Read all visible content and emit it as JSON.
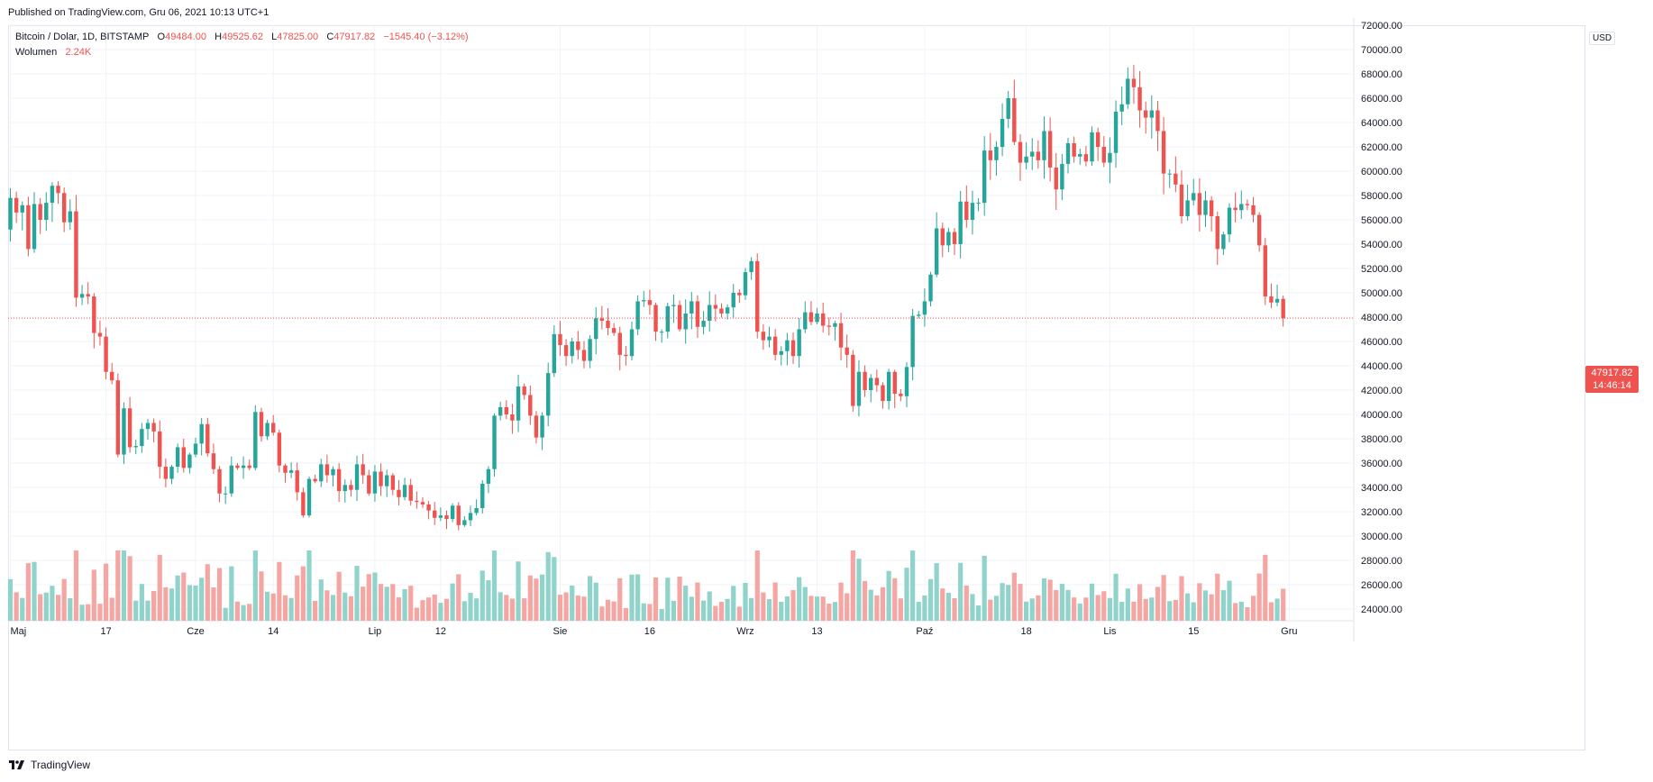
{
  "header": {
    "published": "Published on TradingView.com, Gru 06, 2021 10:13 UTC+1"
  },
  "legend": {
    "symbol": "Bitcoin / Dolar, 1D, BITSTAMP",
    "o_label": "O",
    "o_value": "49484.00",
    "h_label": "H",
    "h_value": "49525.62",
    "l_label": "L",
    "l_value": "47825.00",
    "c_label": "C",
    "c_value": "47917.82",
    "change": "−1545.40 (−3.12%)",
    "volume_label": "Wolumen",
    "volume_value": "2.24K"
  },
  "axis": {
    "currency": "USD"
  },
  "price_tag": {
    "price": "47917.82",
    "countdown": "14:46:14"
  },
  "brand": {
    "name": "TradingView"
  },
  "colors": {
    "up": "#26a69a",
    "down": "#ef5350",
    "up_vol": "#8fd3cb",
    "down_vol": "#f5a5a2",
    "grid": "#f0f3fa"
  },
  "chart_data": {
    "type": "candlestick",
    "title": "Bitcoin / Dolar, 1D, BITSTAMP",
    "ylabel": "USD",
    "ylim": [
      23000,
      72000
    ],
    "y_ticks": [
      24000,
      26000,
      28000,
      30000,
      32000,
      34000,
      36000,
      38000,
      40000,
      42000,
      44000,
      46000,
      48000,
      50000,
      52000,
      54000,
      56000,
      58000,
      60000,
      62000,
      64000,
      66000,
      68000,
      70000,
      72000
    ],
    "y_tick_labels": [
      "24000.00",
      "26000.00",
      "28000.00",
      "30000.00",
      "32000.00",
      "34000.00",
      "36000.00",
      "38000.00",
      "40000.00",
      "42000.00",
      "44000.00",
      "46000.00",
      "48000.00",
      "50000.00",
      "52000.00",
      "54000.00",
      "56000.00",
      "58000.00",
      "60000.00",
      "62000.00",
      "64000.00",
      "66000.00",
      "68000.00",
      "70000.00",
      "72000.00"
    ],
    "x_ticks": [
      {
        "label": "Maj",
        "index": 0
      },
      {
        "label": "17",
        "index": 16
      },
      {
        "label": "Cze",
        "index": 31
      },
      {
        "label": "14",
        "index": 44
      },
      {
        "label": "Lip",
        "index": 61
      },
      {
        "label": "12",
        "index": 72
      },
      {
        "label": "Sie",
        "index": 92
      },
      {
        "label": "16",
        "index": 107
      },
      {
        "label": "Wrz",
        "index": 123
      },
      {
        "label": "13",
        "index": 135
      },
      {
        "label": "Paź",
        "index": 153
      },
      {
        "label": "18",
        "index": 170
      },
      {
        "label": "Lis",
        "index": 184
      },
      {
        "label": "15",
        "index": 198
      },
      {
        "label": "Gru",
        "index": 214
      }
    ],
    "start_date": "2021-05-01",
    "last_price": 47917.82,
    "ohlc_close": [
      57800,
      56600,
      57200,
      53600,
      57300,
      56000,
      57400,
      58800,
      58200,
      55800,
      56700,
      49600,
      49900,
      49700,
      46700,
      46400,
      43500,
      42800,
      36700,
      40500,
      37300,
      37400,
      38800,
      39300,
      38600,
      35700,
      34700,
      35700,
      37300,
      35600,
      36700,
      37600,
      39200,
      36800,
      35500,
      33500,
      33500,
      35800,
      35600,
      35800,
      35600,
      40200,
      38200,
      39300,
      38500,
      35800,
      35200,
      35400,
      33600,
      31700,
      34700,
      34500,
      35900,
      35000,
      35500,
      33700,
      34200,
      33800,
      35900,
      35000,
      33500,
      35300,
      34100,
      35000,
      33800,
      33200,
      34200,
      32900,
      32800,
      32600,
      32100,
      31500,
      31700,
      31400,
      32500,
      30900,
      31300,
      31900,
      32300,
      34300,
      35500,
      39900,
      40600,
      40000,
      39500,
      42300,
      41600,
      39900,
      38100,
      39900,
      43400,
      46600,
      45700,
      44800,
      46000,
      45300,
      44400,
      46200,
      47900,
      47700,
      47100,
      46700,
      44900,
      44800,
      47000,
      49300,
      49400,
      49000,
      46800,
      46800,
      48900,
      49000,
      47000,
      48300,
      49300,
      47200,
      47700,
      49000,
      48700,
      48300,
      48800,
      50000,
      49800,
      51700,
      52600,
      46800,
      46100,
      46400,
      44900,
      45200,
      46100,
      44800,
      47000,
      48400,
      47600,
      48300,
      47300,
      47200,
      47500,
      45500,
      44900,
      40700,
      43500,
      42000,
      43000,
      42400,
      41100,
      43500,
      41700,
      41500,
      43900,
      48100,
      48200,
      49300,
      51500,
      55300,
      53900,
      55000,
      54000,
      57500,
      56000,
      57400,
      57400,
      61700,
      60900,
      62000,
      64300,
      66000,
      62400,
      60700,
      61200,
      61600,
      60900,
      63300,
      60300,
      58500,
      60600,
      62300,
      61200,
      61400,
      60800,
      63200,
      62000,
      60700,
      61500,
      64900,
      65500,
      67600,
      66900,
      65000,
      64400,
      65000,
      63300,
      59800,
      59800,
      58900,
      56300,
      57600,
      58200,
      56400,
      57600,
      56300,
      53600,
      54800,
      57000,
      56800,
      57300,
      57200,
      56400,
      53900,
      49700,
      49200,
      49500,
      47918
    ]
  }
}
